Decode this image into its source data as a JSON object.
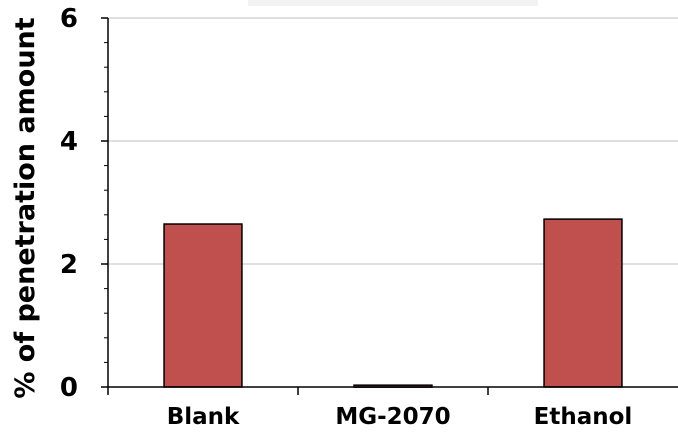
{
  "chart_data": {
    "type": "bar",
    "title": "",
    "xlabel": "",
    "ylabel": "% of penetration amount",
    "categories": [
      "Blank",
      "MG-2070",
      "Ethanol"
    ],
    "values": [
      2.65,
      0.03,
      2.73
    ],
    "ylim": [
      0,
      6
    ],
    "yticks": [
      0,
      2,
      4,
      6
    ],
    "ytick_labels": [
      "0",
      "2",
      "4",
      "6"
    ],
    "grid": true,
    "legend": "none",
    "bar_color": "#c0504d",
    "bar_edge_color": "#000000",
    "grid_color": "#bfbfbf"
  }
}
